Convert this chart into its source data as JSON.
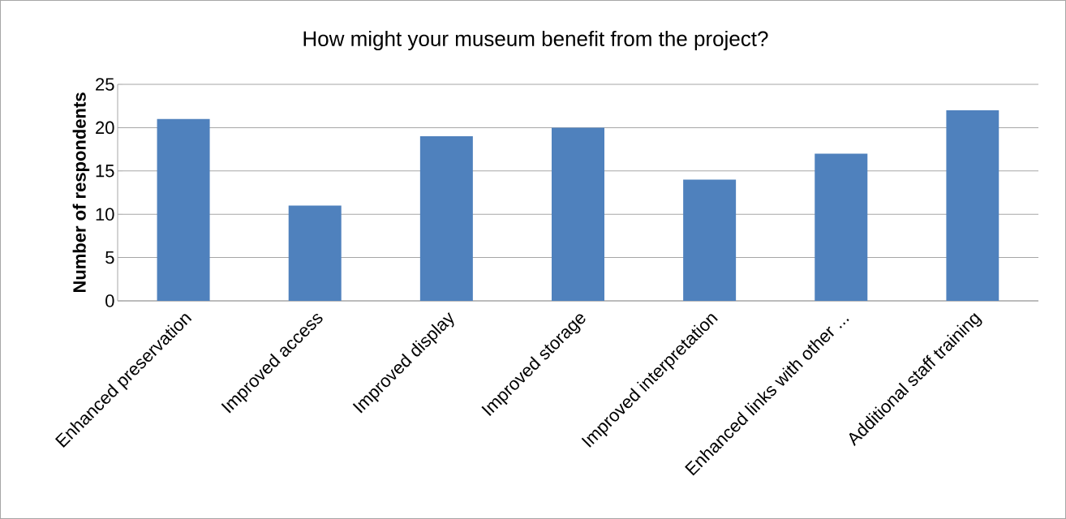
{
  "chart_data": {
    "type": "bar",
    "title": "How might your museum benefit from the project?",
    "ylabel": "Number of respondents",
    "categories": [
      "Enhanced preservation",
      "Improved access",
      "Improved display",
      "Improved storage",
      "Improved interpretation",
      "Enhanced links with other ...",
      "Additional staff training"
    ],
    "values": [
      21,
      11,
      19,
      20,
      14,
      17,
      22
    ],
    "color": "#4f81bd",
    "ylim": [
      0,
      25
    ],
    "yticks": [
      0,
      5,
      10,
      15,
      20,
      25
    ],
    "grid": "y"
  }
}
